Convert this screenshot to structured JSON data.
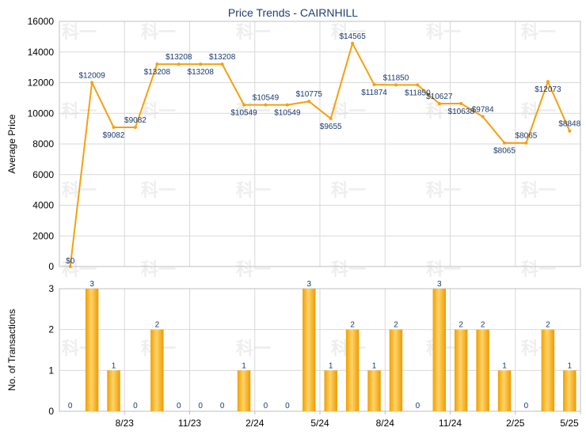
{
  "chart_data": [
    {
      "type": "line",
      "title": "Price Trends - CAIRNHILL",
      "xlabel": "",
      "ylabel": "Average Price",
      "ylim": [
        0,
        16000
      ],
      "yticks": [
        "0",
        "2000",
        "4000",
        "6000",
        "8000",
        "10000",
        "12000",
        "14000",
        "16000"
      ],
      "grid": true,
      "line_color": "#f5a00f",
      "series": [
        {
          "values": [
            0,
            12009,
            9082,
            9082,
            13208,
            13208,
            13208,
            13208,
            10549,
            10549,
            10549,
            10775,
            9655,
            14565,
            11874,
            11850,
            11850,
            10627,
            10638,
            9784,
            8065,
            8065,
            12073,
            8848
          ],
          "labels": [
            "$0",
            "$12009",
            "$9082",
            "$9082",
            "$13208",
            "$13208",
            "$13208",
            "$13208",
            "$10549",
            "$10549",
            "$10549",
            "$10775",
            "$9655",
            "$14565",
            "$11874",
            "$11850",
            "$11850",
            "$10627",
            "$10638",
            "$9784",
            "$8065",
            "$8065",
            "$12073",
            "$8848"
          ]
        }
      ]
    },
    {
      "type": "bar",
      "xlabel": "",
      "ylabel": "No. of Transactions",
      "ylim": [
        0,
        3
      ],
      "yticks": [
        "0",
        "1",
        "2",
        "3"
      ],
      "xticks": [
        "8/23",
        "11/23",
        "2/24",
        "5/24",
        "8/24",
        "11/24",
        "2/25",
        "5/25"
      ],
      "grid": true,
      "bar_color": "#f5a00f",
      "values": [
        0,
        3,
        1,
        0,
        2,
        0,
        0,
        0,
        1,
        0,
        0,
        3,
        1,
        2,
        1,
        2,
        0,
        3,
        2,
        2,
        1,
        0,
        2,
        1
      ]
    }
  ],
  "watermark": "科一"
}
